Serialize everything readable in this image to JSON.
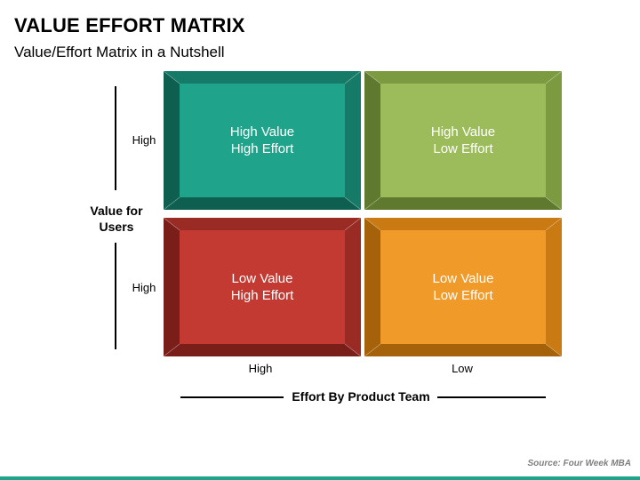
{
  "title": "VALUE EFFORT MATRIX",
  "subtitle": "Value/Effort Matrix in a Nutshell",
  "y_axis": {
    "title_line1": "Value for",
    "title_line2": "Users",
    "ticks": [
      "High",
      "High"
    ]
  },
  "x_axis": {
    "title": "Effort By Product Team",
    "ticks": [
      "High",
      "Low"
    ]
  },
  "quadrants": [
    {
      "line1": "High Value",
      "line2": "High Effort",
      "color_face": "#1fa38a",
      "color_edge": "#157a67",
      "color_dark": "#0f5f50"
    },
    {
      "line1": "High Value",
      "line2": "Low Effort",
      "color_face": "#9cbc5b",
      "color_edge": "#7c9a40",
      "color_dark": "#5f7a2e"
    },
    {
      "line1": "Low Value",
      "line2": "High Effort",
      "color_face": "#c23a32",
      "color_edge": "#9a2a24",
      "color_dark": "#7a1e1a"
    },
    {
      "line1": "Low Value",
      "line2": "Low Effort",
      "color_face": "#f09a2a",
      "color_edge": "#c97a12",
      "color_dark": "#a5620a"
    }
  ],
  "source": "Source: Four Week MBA"
}
